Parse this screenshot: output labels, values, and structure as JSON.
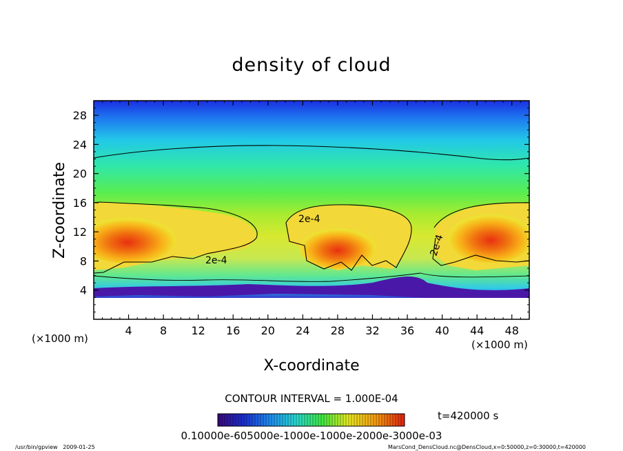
{
  "chart_data": {
    "type": "heatmap",
    "title": "density of cloud",
    "xlabel": "X-coordinate",
    "ylabel": "Z-coordinate",
    "x_unit": "(×1000 m)",
    "y_unit": "(×1000 m)",
    "xlim": [
      0,
      50
    ],
    "ylim": [
      0,
      30
    ],
    "x_ticks": [
      "4",
      "8",
      "12",
      "16",
      "20",
      "24",
      "28",
      "32",
      "36",
      "40",
      "44",
      "48"
    ],
    "y_ticks": [
      "4",
      "8",
      "12",
      "16",
      "20",
      "24",
      "28"
    ],
    "contour_interval": "CONTOUR INTERVAL = 1.000E-04",
    "contour_labels": [
      "2e-4",
      "2e-4",
      "2e-4"
    ],
    "time_label": "t=420000 s",
    "colorbar_label": "0.10000e-605000e-1000e-1000e-2000e-3000e-03",
    "colorbar_range": [
      0.0001,
      0.0003
    ],
    "colormap": [
      "#3a0a78",
      "#1a2fd0",
      "#1e8cf0",
      "#28d8d0",
      "#40e840",
      "#e8e820",
      "#f59a10",
      "#e02010"
    ],
    "grid": false,
    "legend": "none"
  },
  "footer": {
    "left": "/usr/bin/gpview   2009-01-25",
    "right": "MarsCond_DensCloud.nc@DensCloud,x=0:50000,z=0:30000,t=420000"
  }
}
